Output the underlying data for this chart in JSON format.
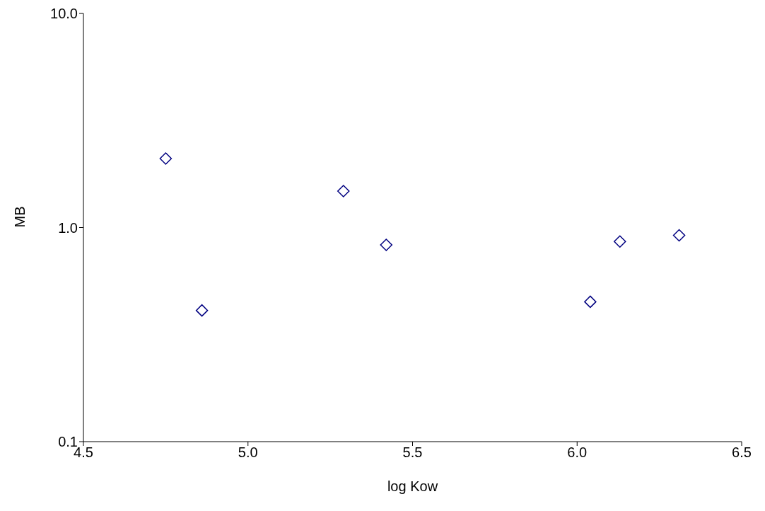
{
  "chart_data": {
    "type": "scatter",
    "xlabel": "log Kow",
    "ylabel": "MB",
    "x": [
      4.75,
      4.86,
      5.29,
      5.42,
      6.04,
      6.13,
      6.31
    ],
    "series": [
      {
        "color": "#000080",
        "values": [
          2.1,
          0.41,
          1.48,
          0.83,
          0.45,
          0.86,
          0.92
        ]
      }
    ],
    "xlim": [
      4.5,
      6.5
    ],
    "xticks": [
      {
        "value": 4.5,
        "label": "4.5"
      },
      {
        "value": 5,
        "label": "5.0"
      },
      {
        "value": 5.5,
        "label": "5.5"
      },
      {
        "value": 6,
        "label": "6.0"
      },
      {
        "value": 6.5,
        "label": "6.5"
      }
    ],
    "ylim": [
      0.1,
      10
    ],
    "yticks": [
      {
        "value": 0.1,
        "label": "0.1"
      },
      {
        "value": 1,
        "label": "1.0"
      },
      {
        "value": 10,
        "label": "10.0"
      }
    ],
    "log": "y",
    "grid": false,
    "legend": false,
    "marker": "diamond"
  }
}
